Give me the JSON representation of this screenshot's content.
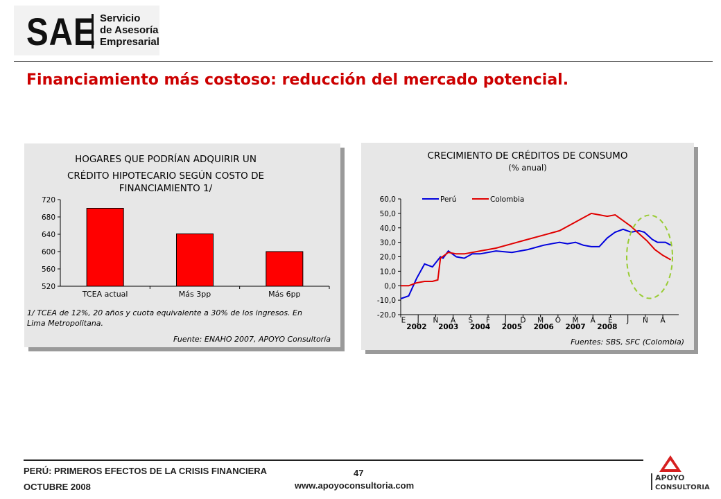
{
  "header": {
    "logo_mark": "SAE",
    "logo_lines": [
      "Servicio",
      "de Asesoría",
      "Empresarial"
    ],
    "title": "Financiamiento más costoso: reducción del mercado potencial."
  },
  "footer": {
    "line1": "PERÚ: PRIMEROS EFECTOS DE LA CRISIS FINANCIERA",
    "line2": "OCTUBRE 2008",
    "page": "47",
    "website": "www.apoyoconsultoria.com",
    "brand_lines": [
      "APOYO",
      "CONSULTORIA"
    ]
  },
  "colors": {
    "title_red": "#cc0000",
    "bar_red": "#ff0000",
    "peru_blue": "#0000dd",
    "colombia_red": "#e00000",
    "highlight_green": "#99cc33"
  },
  "chart_data": [
    {
      "type": "bar",
      "title": [
        "HOGARES QUE PODRÍAN ADQUIRIR UN",
        "CRÉDITO HIPOTECARIO SEGÚN COSTO DE",
        "FINANCIAMIENTO 1/"
      ],
      "categories": [
        "TCEA actual",
        "Más 3pp",
        "Más 6pp"
      ],
      "values": [
        700,
        641,
        600
      ],
      "ylim": [
        520,
        720
      ],
      "yticks": [
        "520",
        "560",
        "600",
        "640",
        "680",
        "720"
      ],
      "note": [
        "1/ TCEA de 12%, 20 años y cuota equivalente a 30% de los ingresos. En",
        "Lima Metropolitana."
      ],
      "source": "Fuente: ENAHO 2007, APOYO Consultoría",
      "grid": false
    },
    {
      "type": "line",
      "title": "CRECIMIENTO DE CRÉDITOS DE CONSUMO",
      "subtitle": "(% anual)",
      "legend_position": "top-left",
      "ylim": [
        -20,
        60
      ],
      "yticks": [
        "-20,0",
        "-10,0",
        "0,0",
        "10,0",
        "20,0",
        "30,0",
        "40,0",
        "50,0",
        "60,0"
      ],
      "month_ticks": [
        "E",
        "J",
        "N",
        "A",
        "S",
        "F",
        "J",
        "D",
        "M",
        "O",
        "M",
        "A",
        "E",
        "J",
        "N",
        "A"
      ],
      "year_labels": [
        "2002",
        "2003",
        "2004",
        "2005",
        "2006",
        "2007",
        "2008"
      ],
      "source": "Fuentes: SBS, SFC (Colombia)",
      "highlight": "dashed ellipse around latest data (2007–2008)",
      "x_units": "months since Jan 2002",
      "series": [
        {
          "name": "Perú",
          "x": [
            0,
            3,
            6,
            9,
            12,
            15,
            16,
            18,
            21,
            24,
            27,
            30,
            33,
            36,
            42,
            48,
            54,
            57,
            60,
            63,
            66,
            69,
            72,
            75,
            78,
            81,
            84,
            87,
            90,
            92,
            95,
            97,
            100,
            102
          ],
          "values": [
            -9,
            -7,
            5,
            15,
            13,
            20,
            19,
            24,
            20,
            19,
            22,
            22,
            23,
            24,
            23,
            25,
            28,
            29,
            30,
            29,
            30,
            28,
            27,
            27,
            33,
            37,
            39,
            37,
            38,
            37,
            32,
            30,
            30,
            28
          ]
        },
        {
          "name": "Colombia",
          "x": [
            0,
            3,
            6,
            9,
            12,
            14,
            15,
            18,
            21,
            24,
            30,
            36,
            42,
            48,
            54,
            60,
            66,
            69,
            72,
            75,
            78,
            81,
            84,
            87,
            90,
            93,
            96,
            99,
            102
          ],
          "values": [
            0,
            0,
            2,
            3,
            3,
            4,
            19,
            23,
            22,
            22,
            24,
            26,
            29,
            32,
            35,
            38,
            44,
            47,
            50,
            49,
            48,
            49,
            45,
            41,
            36,
            31,
            25,
            21,
            18
          ]
        }
      ]
    }
  ]
}
